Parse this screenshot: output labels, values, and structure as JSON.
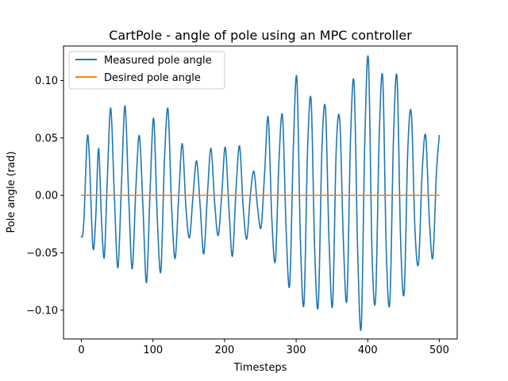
{
  "chart_data": {
    "type": "line",
    "title": "CartPole - angle of pole using an MPC controller",
    "xlabel": "Timesteps",
    "ylabel": "Pole angle (rad)",
    "xlim": [
      -25,
      525
    ],
    "ylim": [
      -0.125,
      0.13
    ],
    "xticks": [
      0,
      100,
      200,
      300,
      400,
      500
    ],
    "xtick_labels": [
      "0",
      "100",
      "200",
      "300",
      "400",
      "500"
    ],
    "yticks": [
      -0.1,
      -0.05,
      0.0,
      0.05,
      0.1
    ],
    "ytick_labels": [
      "−0.10",
      "−0.05",
      "0.00",
      "0.05",
      "0.10"
    ],
    "grid": false,
    "legend_position": "top-left",
    "series": [
      {
        "name": "Measured pole angle",
        "color": "#1f77b4",
        "x": [
          0,
          2,
          4,
          8,
          11,
          16,
          20,
          24,
          28,
          32,
          36,
          41,
          46,
          51,
          56,
          61,
          66,
          71,
          76,
          81,
          86,
          91,
          96,
          101,
          106,
          111,
          116,
          121,
          126,
          131,
          136,
          141,
          146,
          151,
          156,
          161,
          166,
          171,
          176,
          181,
          186,
          191,
          196,
          201,
          206,
          211,
          216,
          221,
          226,
          231,
          236,
          241,
          246,
          251,
          256,
          261,
          266,
          271,
          276,
          281,
          286,
          291,
          296,
          301,
          306,
          311,
          316,
          321,
          326,
          331,
          336,
          341,
          346,
          351,
          356,
          361,
          366,
          371,
          376,
          381,
          386,
          391,
          396,
          401,
          406,
          411,
          416,
          421,
          426,
          431,
          436,
          441,
          446,
          451,
          456,
          461,
          466,
          471,
          476,
          481,
          486,
          491,
          496,
          500
        ],
        "y": [
          -0.036,
          -0.034,
          -0.015,
          0.049,
          0.035,
          -0.045,
          -0.02,
          0.041,
          -0.02,
          -0.054,
          0.01,
          0.076,
          0.0,
          -0.063,
          0.01,
          0.078,
          0.0,
          -0.064,
          0.005,
          0.052,
          -0.01,
          -0.076,
          0.005,
          0.067,
          -0.02,
          -0.066,
          0.03,
          0.075,
          -0.01,
          -0.055,
          0.0,
          0.045,
          -0.01,
          -0.037,
          0.0,
          0.03,
          -0.01,
          -0.051,
          0.0,
          0.041,
          -0.005,
          -0.035,
          0.0,
          0.042,
          -0.01,
          -0.053,
          0.005,
          0.043,
          -0.01,
          -0.038,
          0.0,
          0.021,
          -0.01,
          -0.028,
          0.02,
          0.068,
          -0.02,
          -0.057,
          0.03,
          0.069,
          -0.03,
          -0.078,
          0.04,
          0.102,
          -0.04,
          -0.094,
          0.04,
          0.082,
          -0.05,
          -0.095,
          0.04,
          0.075,
          -0.04,
          -0.095,
          0.04,
          0.065,
          -0.04,
          -0.09,
          0.05,
          0.097,
          -0.05,
          -0.114,
          0.05,
          0.118,
          -0.05,
          -0.09,
          0.05,
          0.102,
          -0.05,
          -0.092,
          0.05,
          0.102,
          -0.04,
          -0.084,
          0.04,
          0.071,
          -0.03,
          -0.059,
          0.02,
          0.052,
          -0.02,
          -0.054,
          0.02,
          0.052
        ]
      },
      {
        "name": "Desired pole angle",
        "color": "#ff7f0e",
        "x": [
          0,
          500
        ],
        "y": [
          0.0,
          0.0
        ]
      }
    ]
  }
}
